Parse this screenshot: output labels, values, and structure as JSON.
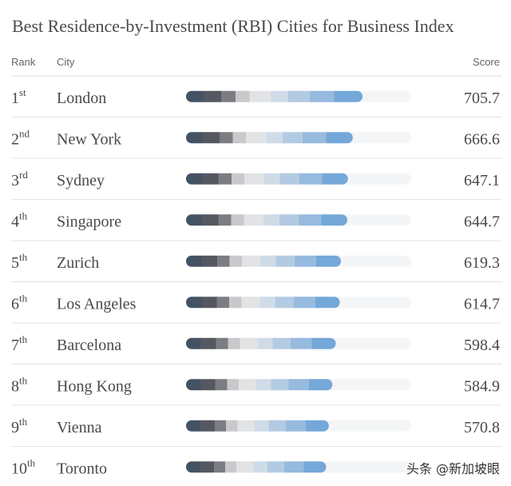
{
  "chart_data": {
    "type": "bar",
    "title": "Best Residence-by-Investment (RBI) Cities for Business Index",
    "columns": [
      "Rank",
      "City",
      "Score"
    ],
    "ranks": [
      [
        "1",
        "st"
      ],
      [
        "2",
        "nd"
      ],
      [
        "3",
        "rd"
      ],
      [
        "4",
        "th"
      ],
      [
        "5",
        "th"
      ],
      [
        "6",
        "th"
      ],
      [
        "7",
        "th"
      ],
      [
        "8",
        "th"
      ],
      [
        "9",
        "th"
      ],
      [
        "10",
        "th"
      ]
    ],
    "categories": [
      "London",
      "New York",
      "Sydney",
      "Singapore",
      "Zurich",
      "Los Angeles",
      "Barcelona",
      "Hong Kong",
      "Vienna",
      "Toronto"
    ],
    "values": [
      705.7,
      666.6,
      647.1,
      644.7,
      619.3,
      614.7,
      598.4,
      584.9,
      570.8,
      560
    ],
    "value_labels": [
      "705.7",
      "666.6",
      "647.1",
      "644.7",
      "619.3",
      "614.7",
      "598.4",
      "584.9",
      "570.8",
      null
    ],
    "xlim": [
      0,
      900
    ],
    "watermark": "头条 @新加坡眼"
  }
}
